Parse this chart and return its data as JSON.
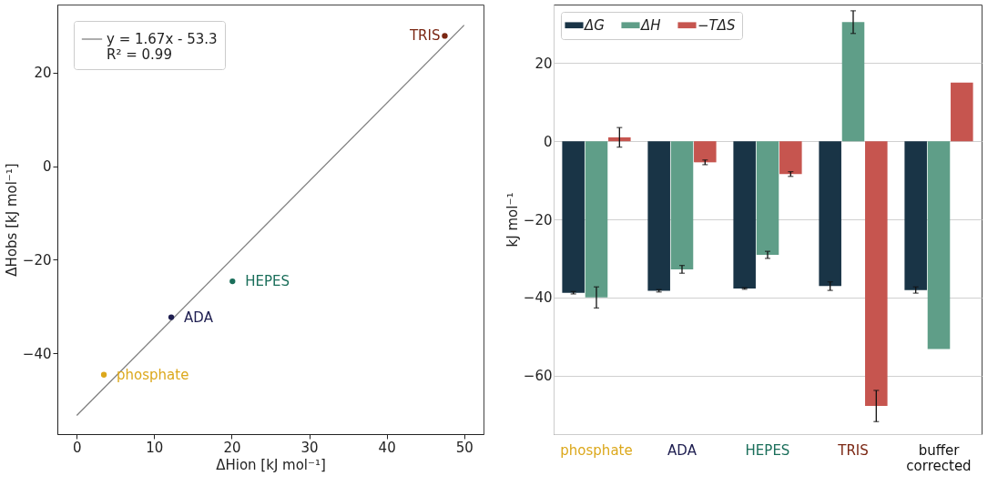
{
  "chart_data": [
    {
      "type": "scatter",
      "xlabel": "ΔHion [kJ mol⁻¹]",
      "ylabel": "ΔHobs [kJ mol⁻¹]",
      "xlim": [
        -2.5,
        52.5
      ],
      "ylim": [
        -57.3,
        34.6
      ],
      "xticks": [
        0,
        10,
        20,
        30,
        40,
        50
      ],
      "yticks": [
        -40,
        -20,
        0,
        20
      ],
      "legend": "top left",
      "series": [
        {
          "name": "y = 1.67x - 53.3\nR² = 0.99",
          "type": "line",
          "color": "#808080",
          "x": [
            0,
            50
          ],
          "values": [
            -53.3,
            30.2
          ]
        },
        {
          "name": "phosphate",
          "color": "#dca81c",
          "marker": "circle",
          "x": [
            3.5
          ],
          "values": [
            -44.6
          ]
        },
        {
          "name": "ADA",
          "color": "#1e1e50",
          "marker": "circle",
          "x": [
            12.2
          ],
          "values": [
            -32.3
          ]
        },
        {
          "name": "HEPES",
          "color": "#1a6e5a",
          "marker": "circle",
          "x": [
            20.1
          ],
          "values": [
            -24.6
          ]
        },
        {
          "name": "TRIS",
          "color": "#7a2612",
          "marker": "circle",
          "x": [
            47.5
          ],
          "values": [
            27.9
          ]
        }
      ]
    },
    {
      "type": "bar",
      "categories": [
        "phosphate",
        "ADA",
        "HEPES",
        "TRIS",
        "buffer corrected"
      ],
      "ylabel": "kJ mol⁻¹",
      "ylim": [
        -75,
        35
      ],
      "yticks": [
        -60,
        -40,
        -20,
        0,
        20
      ],
      "grid": "y",
      "legend": "top left",
      "series": [
        {
          "name": "ΔG",
          "color": "#193446",
          "values": [
            -38.8,
            -38.3,
            -37.7,
            -37.1,
            -38.1
          ],
          "errors": [
            0.3,
            0.3,
            0.2,
            1.1,
            0.8
          ]
        },
        {
          "name": "ΔH",
          "color": "#5f9e88",
          "values": [
            -40.0,
            -32.8,
            -29.1,
            30.5,
            -53.2
          ],
          "errors": [
            2.7,
            1.0,
            0.9,
            2.9,
            null
          ]
        },
        {
          "name": "−TΔS",
          "color": "#c6554f",
          "values": [
            1.0,
            -5.4,
            -8.4,
            -67.8,
            15.0
          ],
          "errors": [
            2.5,
            0.6,
            0.6,
            4.0,
            null
          ]
        }
      ]
    }
  ]
}
